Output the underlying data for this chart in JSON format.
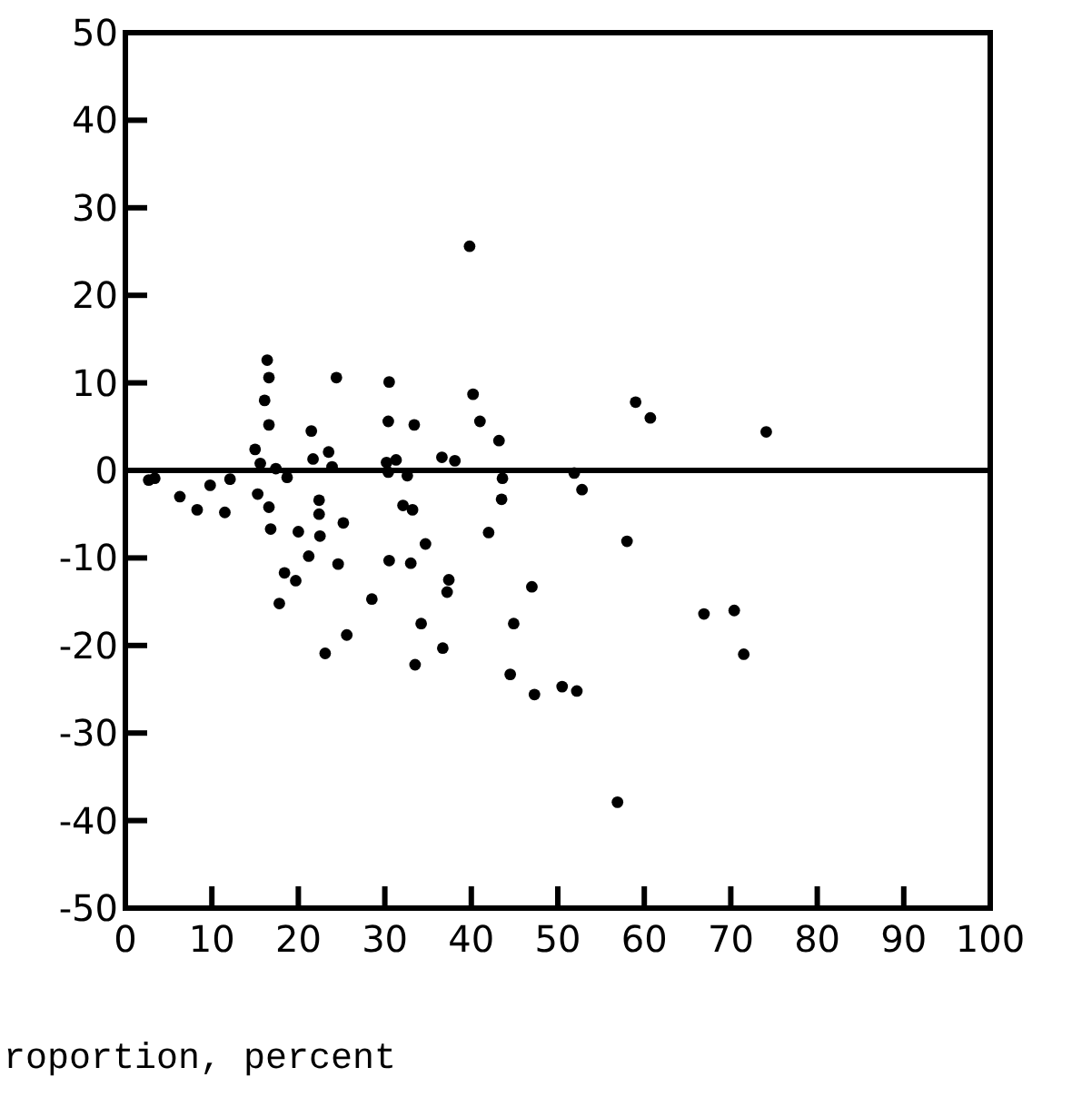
{
  "chart_data": {
    "type": "scatter",
    "xlabel": "roportion, percent",
    "xlim": [
      0,
      100
    ],
    "ylim": [
      -50,
      50
    ],
    "xticks": [
      0,
      10,
      20,
      30,
      40,
      50,
      60,
      70,
      80,
      90,
      100
    ],
    "yticks": [
      -50,
      -40,
      -30,
      -20,
      -10,
      0,
      10,
      20,
      30,
      40,
      50
    ],
    "marker": "circle",
    "ref_lines": [
      {
        "axis": "y",
        "value": 0,
        "color": "#000000"
      }
    ],
    "series": [
      {
        "color": "#000000",
        "x": [
          2.7,
          3.4,
          6.3,
          8.3,
          9.8,
          11.5,
          12.1,
          15.0,
          15.3,
          15.6,
          16.1,
          16.4,
          16.6,
          16.6,
          16.6,
          16.8,
          17.4,
          17.8,
          18.4,
          18.7,
          19.7,
          20.0,
          21.2,
          21.5,
          21.7,
          22.4,
          22.4,
          22.5,
          23.1,
          23.5,
          23.9,
          24.4,
          24.6,
          25.2,
          25.6,
          28.5,
          30.2,
          30.4,
          30.4,
          30.5,
          30.5,
          31.3,
          32.1,
          32.6,
          33.0,
          33.2,
          33.4,
          33.5,
          34.2,
          34.7,
          36.6,
          36.7,
          37.2,
          37.4,
          38.1,
          39.8,
          40.2,
          41.0,
          42.0,
          43.2,
          43.5,
          43.6,
          44.5,
          44.9,
          47.0,
          47.3,
          50.5,
          51.9,
          52.2,
          52.8,
          56.9,
          58.0,
          59.0,
          60.7,
          66.9,
          70.4,
          71.5,
          74.1
        ],
        "values": [
          -1.1,
          -0.9,
          -3.0,
          -4.5,
          -1.7,
          -4.8,
          -1.0,
          2.4,
          -2.7,
          0.8,
          8.0,
          12.6,
          10.6,
          5.2,
          -4.2,
          -6.7,
          0.2,
          -15.2,
          -11.7,
          -0.8,
          -12.6,
          -7.0,
          -9.8,
          4.5,
          1.3,
          -3.4,
          -5.0,
          -7.5,
          -20.9,
          2.1,
          0.4,
          10.6,
          -10.7,
          -6.0,
          -18.8,
          -14.7,
          0.9,
          5.6,
          -0.2,
          10.1,
          -10.3,
          1.2,
          -4.0,
          -0.6,
          -10.6,
          -4.5,
          5.2,
          -22.2,
          -17.5,
          -8.4,
          1.5,
          -20.3,
          -13.9,
          -12.5,
          1.1,
          25.6,
          8.7,
          5.6,
          -7.1,
          3.4,
          -3.3,
          -0.9,
          -23.3,
          -17.5,
          -13.3,
          -25.6,
          -24.7,
          -0.3,
          -25.2,
          -2.2,
          -37.9,
          -8.1,
          7.8,
          6.0,
          -16.4,
          -16.0,
          -21.0,
          4.4
        ]
      }
    ]
  }
}
